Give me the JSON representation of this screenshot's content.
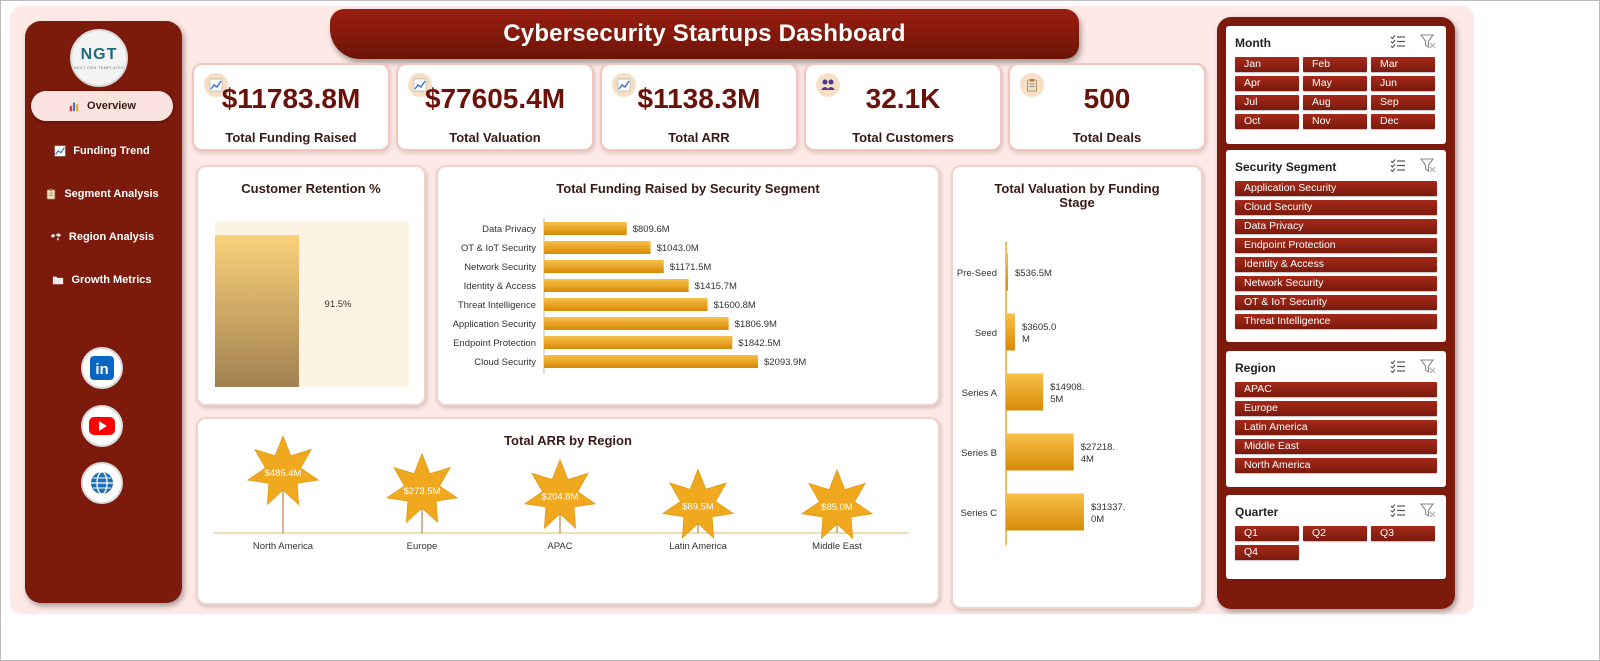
{
  "header": {
    "title": "Cybersecurity Startups Dashboard"
  },
  "logo": {
    "mark": "NGT",
    "sub": "NEXT GEN TEMPLATES"
  },
  "sidebar": {
    "items": [
      {
        "label": "Overview",
        "icon": "bar-chart-icon",
        "active": true
      },
      {
        "label": "Funding Trend",
        "icon": "trend-chart-icon",
        "active": false
      },
      {
        "label": "Segment Analysis",
        "icon": "clipboard-icon",
        "active": false
      },
      {
        "label": "Region Analysis",
        "icon": "world-map-icon",
        "active": false
      },
      {
        "label": "Growth Metrics",
        "icon": "folder-icon",
        "active": false
      }
    ],
    "social": [
      {
        "name": "linkedin",
        "label": "in",
        "color": "#0a66c2"
      },
      {
        "name": "youtube",
        "color": "#ff0000"
      },
      {
        "name": "website",
        "color": "#1f6fb5"
      }
    ]
  },
  "kpis": [
    {
      "value": "$11783.8M",
      "label": "Total Funding Raised",
      "icon": "trend-chart-icon"
    },
    {
      "value": "$77605.4M",
      "label": "Total Valuation",
      "icon": "trend-chart-icon"
    },
    {
      "value": "$1138.3M",
      "label": "Total ARR",
      "icon": "trend-chart-icon"
    },
    {
      "value": "32.1K",
      "label": "Total Customers",
      "icon": "people-icon"
    },
    {
      "value": "500",
      "label": "Total Deals",
      "icon": "clipboard-icon"
    }
  ],
  "panels": {
    "retention": {
      "title": "Customer Retention %",
      "chart_data": {
        "type": "bar",
        "values": [
          91.5
        ],
        "labels": [
          "91.5%"
        ],
        "ylim": [
          0,
          100
        ]
      }
    },
    "funding_by_segment": {
      "title": "Total Funding Raised by Security Segment",
      "chart_data": {
        "type": "bar",
        "orientation": "horizontal",
        "categories": [
          "Data Privacy",
          "OT & IoT Security",
          "Network Security",
          "Identity & Access",
          "Threat Intelligence",
          "Application Security",
          "Endpoint Protection",
          "Cloud Security"
        ],
        "values": [
          809.6,
          1043.0,
          1171.5,
          1415.7,
          1600.8,
          1806.9,
          1842.5,
          2093.9
        ],
        "labels": [
          "$809.6M",
          "$1043.0M",
          "$1171.5M",
          "$1415.7M",
          "$1600.8M",
          "$1806.9M",
          "$1842.5M",
          "$2093.9M"
        ]
      }
    },
    "valuation_by_stage": {
      "title_line1": "Total Valuation by Funding",
      "title_line2": "Stage",
      "chart_data": {
        "type": "bar",
        "orientation": "horizontal",
        "categories": [
          "Pre-Seed",
          "Seed",
          "Series A",
          "Series B",
          "Series C"
        ],
        "values": [
          536.5,
          3605.0,
          14908.5,
          27218.4,
          31337.0
        ],
        "labels": [
          [
            "$536.5M"
          ],
          [
            "$3605.0",
            "M"
          ],
          [
            "$14908.",
            "5M"
          ],
          [
            "$27218.",
            "4M"
          ],
          [
            "$31337.",
            "0M"
          ]
        ]
      }
    },
    "arr_by_region": {
      "title": "Total ARR by Region",
      "chart_data": {
        "type": "scatter",
        "categories": [
          "North America",
          "Europe",
          "APAC",
          "Latin America",
          "Middle East"
        ],
        "values": [
          485.4,
          273.5,
          204.8,
          89.5,
          85.0
        ],
        "labels": [
          "$485.4M",
          "$273.5M",
          "$204.8M",
          "$89.5M",
          "$85.0M"
        ]
      }
    }
  },
  "slicers": [
    {
      "title": "Month",
      "items": [
        "Jan",
        "Feb",
        "Mar",
        "Apr",
        "May",
        "Jun",
        "Jul",
        "Aug",
        "Sep",
        "Oct",
        "Nov",
        "Dec"
      ],
      "columns": 3
    },
    {
      "title": "Security Segment",
      "items": [
        "Application Security",
        "Cloud Security",
        "Data Privacy",
        "Endpoint Protection",
        "Identity & Access",
        "Network Security",
        "OT & IoT Security",
        "Threat Intelligence"
      ],
      "columns": 1
    },
    {
      "title": "Region",
      "items": [
        "APAC",
        "Europe",
        "Latin America",
        "Middle East",
        "North America"
      ],
      "columns": 1
    },
    {
      "title": "Quarter",
      "items": [
        "Q1",
        "Q2",
        "Q3",
        "Q4"
      ],
      "columns": 3
    }
  ],
  "colors": {
    "brand": "#7c1a0c",
    "accent": "#f0a81e",
    "panel_bg": "#fde9e6"
  }
}
